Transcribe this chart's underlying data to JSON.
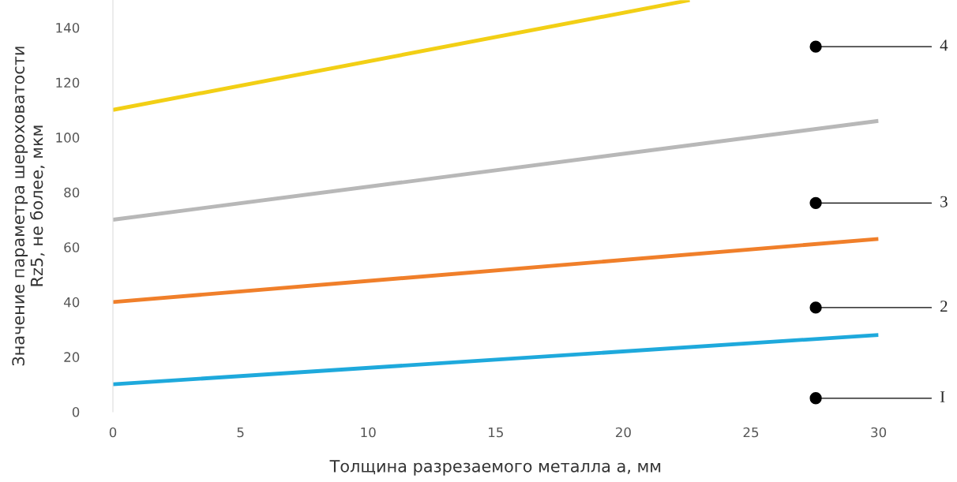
{
  "chart_data": {
    "type": "line",
    "xlabel": "Толщина разрезаемого металла a, мм",
    "ylabel": "Значение параметра шероховатости\nRz5, не более, мкм",
    "series": [
      {
        "x": [
          0,
          30
        ],
        "values": [
          10,
          28
        ],
        "color": "#1ea9dc"
      },
      {
        "x": [
          0,
          30
        ],
        "values": [
          40,
          63
        ],
        "color": "#f07f2a"
      },
      {
        "x": [
          0,
          30
        ],
        "values": [
          70,
          106
        ],
        "color": "#b8b8b8"
      },
      {
        "x": [
          0,
          22.6
        ],
        "values": [
          110,
          150
        ],
        "color": "#f2cf15"
      }
    ],
    "annotations": [
      "I",
      "2",
      "3",
      "4"
    ],
    "xlim": [
      0,
      30
    ],
    "ylim": [
      0,
      150
    ],
    "xticks": [
      0,
      5,
      10,
      15,
      20,
      25,
      30
    ],
    "yticks": [
      0,
      20,
      40,
      60,
      80,
      100,
      120,
      140
    ],
    "grid": false,
    "legend": false,
    "marker": "none",
    "line_style": "solid"
  }
}
